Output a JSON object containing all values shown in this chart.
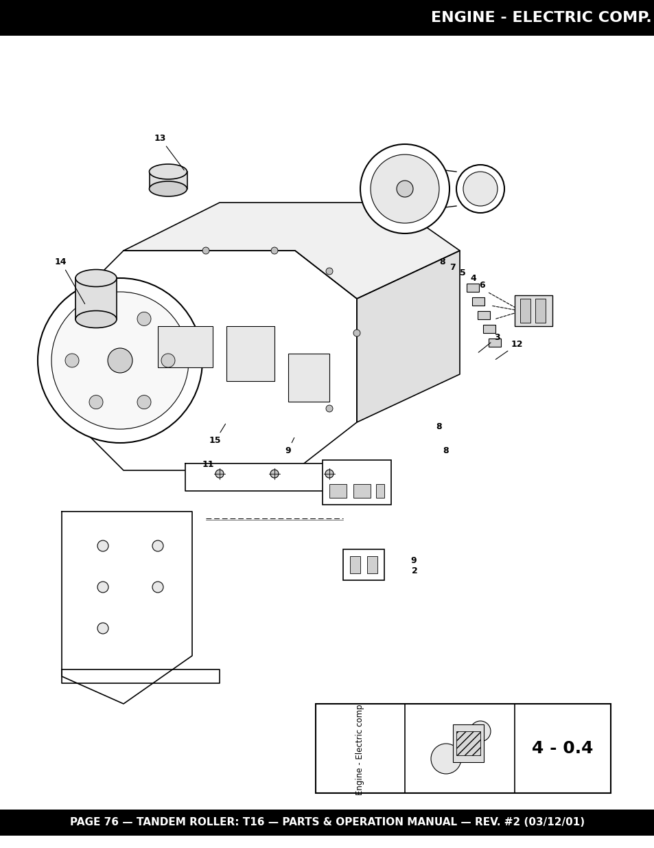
{
  "title": "ENGINE - ELECTRIC COMP.",
  "footer": "PAGE 76 — TANDEM ROLLER: T16 — PARTS & OPERATION MANUAL — REV. #2 (03/12/01)",
  "header_bg": "#000000",
  "header_text_color": "#ffffff",
  "footer_bg": "#000000",
  "footer_text_color": "#ffffff",
  "bg_color": "#ffffff",
  "title_fontsize": 16,
  "footer_fontsize": 11,
  "inset_label1": "Engine - Electric comp.",
  "inset_label2": "4 - 0.4",
  "fig_width": 9.54,
  "fig_height": 12.35
}
